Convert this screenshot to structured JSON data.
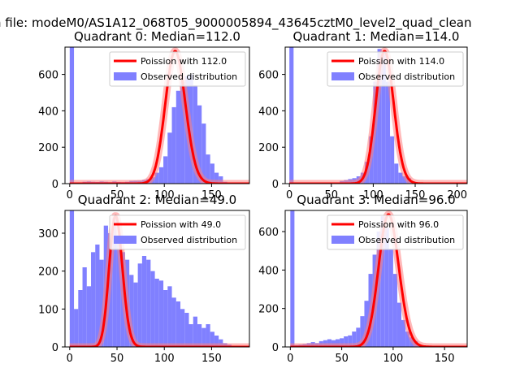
{
  "figure": {
    "suptitle": "n file: modeM0/AS1A12_068T05_9000005894_43645cztM0_level2_quad_clean"
  },
  "colors": {
    "hist": "#8080ff",
    "fit_line": "#ff0000",
    "fit_glow": "#ff8080"
  },
  "chart_data": [
    {
      "type": "bar",
      "title": "Quadrant 0: Median=112.0",
      "median": 112.0,
      "xlim": [
        -5,
        190
      ],
      "ylim": [
        0,
        750
      ],
      "xticks": [
        0,
        50,
        100,
        150
      ],
      "yticks": [
        0,
        200,
        400,
        600
      ],
      "bin_start": 0,
      "bin_width": 4.5,
      "values": [
        750,
        3,
        6,
        10,
        12,
        10,
        9,
        12,
        10,
        8,
        12,
        9,
        8,
        10,
        15,
        16,
        16,
        20,
        25,
        35,
        60,
        90,
        150,
        280,
        420,
        510,
        560,
        590,
        600,
        540,
        430,
        330,
        160,
        110,
        60,
        40,
        10,
        4,
        3,
        2,
        1,
        1
      ],
      "legend": [
        "Poission with 112.0",
        "Observed distribution"
      ],
      "legend_loc": "upper right"
    },
    {
      "type": "bar",
      "title": "Quadrant 1: Median=114.0",
      "median": 114.0,
      "xlim": [
        -5,
        212
      ],
      "ylim": [
        0,
        750
      ],
      "xticks": [
        0,
        50,
        100,
        150,
        200
      ],
      "yticks": [
        0,
        200,
        400,
        600
      ],
      "bin_start": 0,
      "bin_width": 5,
      "values": [
        750,
        0,
        0,
        0,
        0,
        0,
        0,
        0,
        0,
        0,
        0,
        0,
        15,
        20,
        25,
        30,
        40,
        60,
        120,
        260,
        560,
        740,
        720,
        560,
        260,
        110,
        60,
        40,
        30,
        10,
        5,
        3,
        2,
        1,
        1,
        0,
        0,
        0,
        0,
        0,
        0
      ],
      "legend": [
        "Poission with 114.0",
        "Observed distribution"
      ],
      "legend_loc": "upper right"
    },
    {
      "type": "bar",
      "title": "Quadrant 2: Median=49.0",
      "median": 49.0,
      "xlim": [
        -5,
        190
      ],
      "ylim": [
        0,
        360
      ],
      "xticks": [
        0,
        50,
        100,
        150
      ],
      "yticks": [
        0,
        100,
        200,
        300
      ],
      "bin_start": 0,
      "bin_width": 4.5,
      "values": [
        360,
        100,
        150,
        210,
        160,
        250,
        270,
        230,
        320,
        300,
        340,
        290,
        250,
        230,
        190,
        170,
        220,
        240,
        230,
        200,
        180,
        175,
        150,
        160,
        130,
        120,
        100,
        90,
        60,
        80,
        60,
        50,
        60,
        40,
        30,
        20,
        10,
        6,
        3,
        2,
        1,
        0
      ],
      "legend": [
        "Poission with 49.0",
        "Observed distribution"
      ],
      "legend_loc": "upper right"
    },
    {
      "type": "bar",
      "title": "Quadrant 3: Median=96.0",
      "median": 96.0,
      "xlim": [
        -5,
        172
      ],
      "ylim": [
        0,
        710
      ],
      "xticks": [
        0,
        50,
        100,
        150
      ],
      "yticks": [
        0,
        200,
        400,
        600
      ],
      "bin_start": 0,
      "bin_width": 4,
      "values": [
        710,
        10,
        12,
        15,
        20,
        25,
        20,
        30,
        35,
        40,
        35,
        40,
        45,
        55,
        60,
        80,
        100,
        160,
        240,
        380,
        480,
        600,
        680,
        620,
        510,
        380,
        230,
        140,
        80,
        50,
        30,
        10,
        5,
        2,
        1,
        0,
        0,
        0,
        0,
        0,
        0,
        0
      ],
      "legend": [
        "Poission with 96.0",
        "Observed distribution"
      ],
      "legend_loc": "upper right"
    }
  ]
}
